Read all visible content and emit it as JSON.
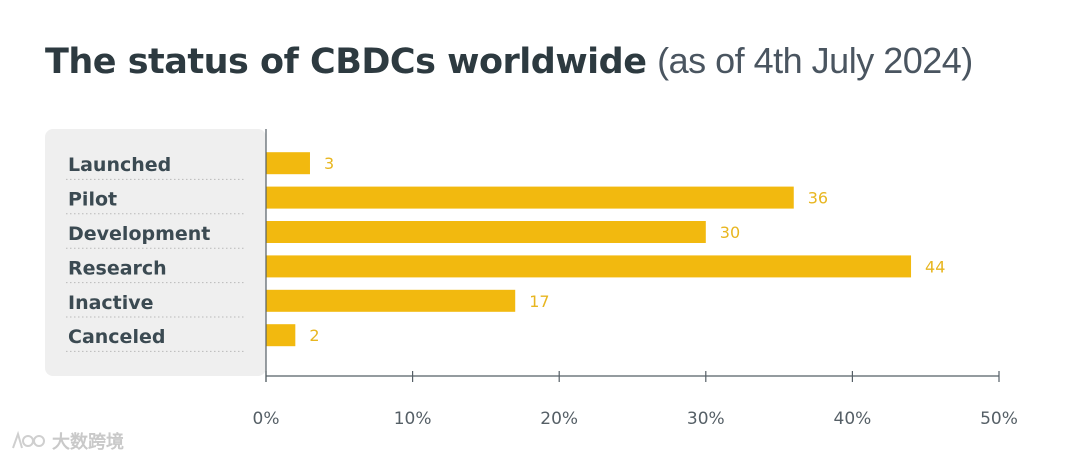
{
  "header": {
    "title_bold": "The status of CBDCs worldwide",
    "title_sub": "(as of 4th July 2024)"
  },
  "chart_data": {
    "type": "bar",
    "orientation": "horizontal",
    "title": "The status of CBDCs worldwide (as of 4th July 2024)",
    "categories": [
      "Launched",
      "Pilot",
      "Development",
      "Research",
      "Inactive",
      "Canceled"
    ],
    "values": [
      3,
      36,
      30,
      44,
      17,
      2
    ],
    "x_axis": {
      "ticks": [
        0,
        10,
        20,
        30,
        40,
        50
      ],
      "tick_labels": [
        "0%",
        "10%",
        "20%",
        "30%",
        "40%",
        "50%"
      ],
      "range": [
        0,
        50
      ]
    },
    "xlabel": "",
    "ylabel": "",
    "colors": {
      "bar": "#f2b90f",
      "value_label": "#e8b620",
      "category_label": "#3b4a52",
      "label_panel": "#efefef",
      "axis": "#555f66",
      "tick_label": "#555f66"
    }
  },
  "watermark": {
    "text": "大数跨境",
    "icon": "watermark-logo-icon"
  }
}
